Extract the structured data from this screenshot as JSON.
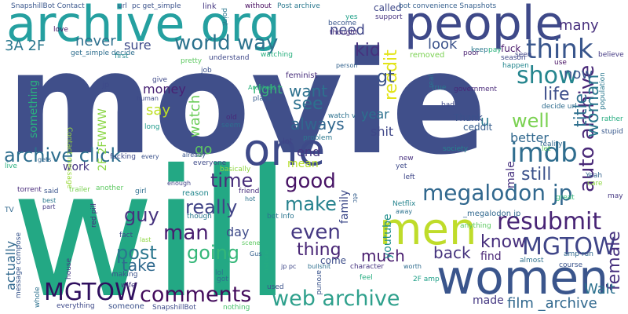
{
  "words": [
    {
      "text": "movie",
      "color": "#404f8a"
    },
    {
      "text": "will",
      "color": "#23a884"
    },
    {
      "text": "women",
      "color": "#3a558c"
    },
    {
      "text": "people",
      "color": "#3e4989"
    },
    {
      "text": "archive org",
      "color": "#25a0a0"
    },
    {
      "text": "one",
      "color": "#3e4a89"
    },
    {
      "text": "men",
      "color": "#bfdc2a"
    },
    {
      "text": "megalodon jp",
      "color": "#31688e"
    },
    {
      "text": "web archive",
      "color": "#2ea08c"
    },
    {
      "text": "comments",
      "color": "#440c5c"
    },
    {
      "text": "MGTOW",
      "color": "#2f0f5e"
    },
    {
      "text": "archive click",
      "color": "#2e6e8e"
    },
    {
      "text": "auto archive",
      "color": "#482777"
    },
    {
      "text": "imdb",
      "color": "#2f6d8e"
    },
    {
      "text": "resubmit",
      "color": "#482475"
    },
    {
      "text": "MGTOW",
      "color": "#3f4588"
    },
    {
      "text": "think",
      "color": "#39568c"
    },
    {
      "text": "world way",
      "color": "#2c738e"
    },
    {
      "text": "show",
      "color": "#25858e"
    },
    {
      "text": "going",
      "color": "#35b779"
    },
    {
      "text": "female",
      "color": "#46307e"
    },
    {
      "text": "woman",
      "color": "#2a788e"
    },
    {
      "text": "title",
      "color": "#2e6f8e"
    },
    {
      "text": "life",
      "color": "#3d4e8a"
    },
    {
      "text": "man",
      "color": "#481d6f"
    },
    {
      "text": "guy",
      "color": "#46327e"
    },
    {
      "text": "time",
      "color": "#472c7a"
    },
    {
      "text": "really",
      "color": "#414487"
    },
    {
      "text": "even",
      "color": "#453882"
    },
    {
      "text": "make",
      "color": "#26828e"
    },
    {
      "text": "good",
      "color": "#471365"
    },
    {
      "text": "post",
      "color": "#2a768e"
    },
    {
      "text": "take",
      "color": "#30698e"
    },
    {
      "text": "always",
      "color": "#31678e"
    },
    {
      "text": "see",
      "color": "#2c718e"
    },
    {
      "text": "want",
      "color": "#2d718e"
    },
    {
      "text": "well",
      "color": "#7ad151"
    },
    {
      "text": "know",
      "color": "#472f7d"
    },
    {
      "text": "still",
      "color": "#3b518b"
    },
    {
      "text": "thing",
      "color": "#482575"
    },
    {
      "text": "back",
      "color": "#45337d"
    },
    {
      "text": "much",
      "color": "#481c6e"
    },
    {
      "text": "film _archive",
      "color": "#31688e"
    },
    {
      "text": "Walt",
      "color": "#2c718e"
    },
    {
      "text": "reddit",
      "color": "#e2e418"
    },
    {
      "text": "kid",
      "color": "#46327e"
    },
    {
      "text": "gt",
      "color": "#3b528b"
    },
    {
      "text": "now",
      "color": "#3a548c"
    },
    {
      "text": "many",
      "color": "#472f7d"
    },
    {
      "text": "need",
      "color": "#404688"
    },
    {
      "text": "look",
      "color": "#3b528b"
    },
    {
      "text": "never",
      "color": "#2d708e"
    },
    {
      "text": "sure",
      "color": "#3e4a89"
    },
    {
      "text": "say",
      "color": "#bddf26"
    },
    {
      "text": "money",
      "color": "#482173"
    },
    {
      "text": "watch",
      "color": "#6ccd5a"
    },
    {
      "text": "day",
      "color": "#3e4a89"
    },
    {
      "text": "go",
      "color": "#5ec962"
    },
    {
      "text": "end",
      "color": "#453781"
    },
    {
      "text": "mean",
      "color": "#b5de2b"
    },
    {
      "text": "year",
      "color": "#2c718e"
    },
    {
      "text": "shit",
      "color": "#3f4788"
    },
    {
      "text": "right",
      "color": "#35b779"
    },
    {
      "text": "3A 2F",
      "color": "#2a778e"
    },
    {
      "text": "better",
      "color": "#31688e"
    },
    {
      "text": "work",
      "color": "#453581"
    },
    {
      "text": "actually",
      "color": "#31688e"
    },
    {
      "text": "youtube",
      "color": "#218f8d"
    },
    {
      "text": "family",
      "color": "#3e4a89"
    },
    {
      "text": "male",
      "color": "#46307e"
    },
    {
      "text": "made",
      "color": "#453882"
    },
    {
      "text": "find",
      "color": "#482576"
    },
    {
      "text": "something",
      "color": "#2ab07f"
    },
    {
      "text": "2F 2FWWW",
      "color": "#8bd646"
    },
    {
      "text": "come",
      "color": "#3d4d8a"
    },
    {
      "text": "called",
      "color": "#3f4889"
    },
    {
      "text": "u",
      "color": "#2a788e"
    },
    {
      "text": "ceddit",
      "color": "#365d8d"
    },
    {
      "text": "Thank",
      "color": "#3b518b"
    },
    {
      "text": "SnapshillBot Contact",
      "color": "#39568c"
    },
    {
      "text": "pc get_simple",
      "color": "#3b528b"
    },
    {
      "text": "Post archive",
      "color": "#2a788e"
    },
    {
      "text": "bot convenience Snapshots",
      "color": "#355f8d"
    },
    {
      "text": "url",
      "color": "#3a538b"
    },
    {
      "text": "link",
      "color": "#453781"
    },
    {
      "text": "without",
      "color": "#460b5e"
    },
    {
      "text": "get_simple decide",
      "color": "#2e6e8e"
    },
    {
      "text": "first",
      "color": "#23888e"
    },
    {
      "text": "watching",
      "color": "#2ab07f"
    },
    {
      "text": "person",
      "color": "#33638d"
    },
    {
      "text": "removed",
      "color": "#7ad151"
    },
    {
      "text": "keep",
      "color": "#2a788e"
    },
    {
      "text": "pay",
      "color": "#2db27d"
    },
    {
      "text": "fuck",
      "color": "#48186a"
    },
    {
      "text": "seen",
      "color": "#414487"
    },
    {
      "text": "season",
      "color": "#3f4788"
    },
    {
      "text": "happen",
      "color": "#24868e"
    },
    {
      "text": "believe",
      "color": "#443983"
    },
    {
      "text": "use",
      "color": "#471063"
    },
    {
      "text": "feminist",
      "color": "#472d7b"
    },
    {
      "text": "government",
      "color": "#482878"
    },
    {
      "text": "decide url",
      "color": "#2f6c8e"
    },
    {
      "text": "rather",
      "color": "#27ad81"
    },
    {
      "text": "stupid",
      "color": "#38588c"
    },
    {
      "text": "Yeah",
      "color": "#33638d"
    },
    {
      "text": "care",
      "color": "#8fd744"
    },
    {
      "text": "may",
      "color": "#453882"
    },
    {
      "text": "great",
      "color": "#35b779"
    },
    {
      "text": "reality",
      "color": "#31688e"
    },
    {
      "text": "let",
      "color": "#5ec962"
    },
    {
      "text": "society",
      "color": "#25838e"
    },
    {
      "text": "bad",
      "color": "#3e4989"
    },
    {
      "text": "true",
      "color": "#2a788e"
    },
    {
      "text": "real",
      "color": "#2c718e"
    },
    {
      "text": "poor",
      "color": "#481f70"
    },
    {
      "text": "yes",
      "color": "#1fa088"
    },
    {
      "text": "become",
      "color": "#39568c"
    },
    {
      "text": "thought",
      "color": "#472a7a"
    },
    {
      "text": "support",
      "color": "#46337f"
    },
    {
      "text": "point",
      "color": "#2a778e"
    },
    {
      "text": "love",
      "color": "#471063"
    },
    {
      "text": "understand",
      "color": "#3f4889"
    },
    {
      "text": "pretty",
      "color": "#5ec962"
    },
    {
      "text": "job",
      "color": "#3b518b"
    },
    {
      "text": "give",
      "color": "#3e4989"
    },
    {
      "text": "human",
      "color": "#3e4a89"
    },
    {
      "text": "Archived",
      "color": "#2db27d"
    },
    {
      "text": "place",
      "color": "#365c8d"
    },
    {
      "text": "watch v",
      "color": "#2c718e"
    },
    {
      "text": "problem",
      "color": "#2a788e"
    },
    {
      "text": "lot",
      "color": "#414487"
    },
    {
      "text": "old",
      "color": "#482878"
    },
    {
      "text": "seem",
      "color": "#2e6e8e"
    },
    {
      "text": "long",
      "color": "#1f9a8a"
    },
    {
      "text": "Contact message",
      "color": "#9bd93c"
    },
    {
      "text": "fucking",
      "color": "#3e4989"
    },
    {
      "text": "every",
      "color": "#3b528b"
    },
    {
      "text": "already",
      "color": "#3a548c"
    },
    {
      "text": "everyone",
      "color": "#3e4a89"
    },
    {
      "text": "basically",
      "color": "#90d743"
    },
    {
      "text": "live",
      "color": "#2ab07f"
    },
    {
      "text": "gets",
      "color": "#32648e"
    },
    {
      "text": "torrent",
      "color": "#472a7a"
    },
    {
      "text": "said",
      "color": "#3a548c"
    },
    {
      "text": "best",
      "color": "#2a788e"
    },
    {
      "text": "part",
      "color": "#443983"
    },
    {
      "text": "trailer",
      "color": "#7ad151"
    },
    {
      "text": "another",
      "color": "#5ec962"
    },
    {
      "text": "red pill",
      "color": "#46307e"
    },
    {
      "text": "girl",
      "color": "#2e6f8e"
    },
    {
      "text": "enough",
      "color": "#414487"
    },
    {
      "text": "reason",
      "color": "#23888e"
    },
    {
      "text": "though",
      "color": "#2a778e"
    },
    {
      "text": "friend",
      "color": "#472d7b"
    },
    {
      "text": "hot",
      "color": "#2c728e"
    },
    {
      "text": "scene",
      "color": "#5ec962"
    },
    {
      "text": "bot Info",
      "color": "#2b748e"
    },
    {
      "text": "etc",
      "color": "#355f8d"
    },
    {
      "text": "new",
      "color": "#46307e"
    },
    {
      "text": "yet",
      "color": "#3e4a89"
    },
    {
      "text": "left",
      "color": "#3f4788"
    },
    {
      "text": "Netflix",
      "color": "#25848e"
    },
    {
      "text": "away",
      "color": "#2c728e"
    },
    {
      "text": "_megalodon jp",
      "color": "#31688e"
    },
    {
      "text": "anything",
      "color": "#5ec962"
    },
    {
      "text": "fact",
      "color": "#3e4a89"
    },
    {
      "text": "last",
      "color": "#8fd744"
    },
    {
      "text": "Gus",
      "color": "#34618d"
    },
    {
      "text": "message compose",
      "color": "#39568c"
    },
    {
      "text": "TV",
      "color": "#31688e"
    },
    {
      "text": "house",
      "color": "#453882"
    },
    {
      "text": "making",
      "color": "#3b528b"
    },
    {
      "text": "wife",
      "color": "#453781"
    },
    {
      "text": "lol",
      "color": "#2c718e"
    },
    {
      "text": "got",
      "color": "#2e6e8e"
    },
    {
      "text": "nature",
      "color": "#25ab82"
    },
    {
      "text": "jp pc",
      "color": "#3f4889"
    },
    {
      "text": "bullshit",
      "color": "#2e6f8e"
    },
    {
      "text": "character",
      "color": "#46337f"
    },
    {
      "text": "feel",
      "color": "#27ad81"
    },
    {
      "text": "worth",
      "color": "#2f6c8e"
    },
    {
      "text": "2F amp",
      "color": "#1fa088"
    },
    {
      "text": "almost",
      "color": "#2d708e"
    },
    {
      "text": "course",
      "color": "#3a548c"
    },
    {
      "text": "amp run",
      "color": "#31688e"
    },
    {
      "text": "whole",
      "color": "#2c718e"
    },
    {
      "text": "everything",
      "color": "#3e4989"
    },
    {
      "text": "someone",
      "color": "#3b518b"
    },
    {
      "text": "SnapshillBot",
      "color": "#3e4a89"
    },
    {
      "text": "nothing",
      "color": "#4ac16d"
    },
    {
      "text": "used",
      "color": "#3b528b"
    },
    {
      "text": "around",
      "color": "#3a548c"
    },
    {
      "text": "jp",
      "color": "#3e4a89"
    },
    {
      "text": "population",
      "color": "#2a788e"
    }
  ]
}
